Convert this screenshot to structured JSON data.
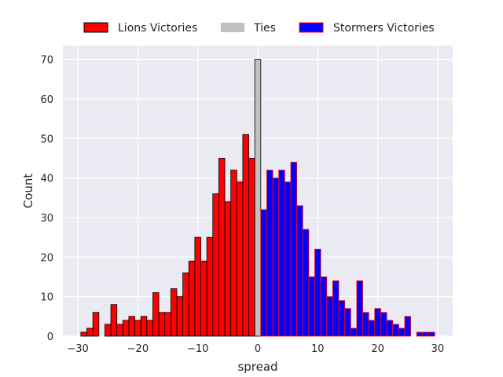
{
  "chart_data": {
    "type": "bar",
    "title": "",
    "xlabel": "spread",
    "ylabel": "Count",
    "xlim": [
      -32.5,
      32.5
    ],
    "ylim": [
      0,
      73.5
    ],
    "xticks": [
      -30,
      -20,
      -10,
      0,
      10,
      20,
      30
    ],
    "yticks": [
      0,
      10,
      20,
      30,
      40,
      50,
      60,
      70
    ],
    "grid": true,
    "legend_position": "top-center",
    "bin_width": 1,
    "series": [
      {
        "name": "Lions Victories",
        "color": "#ff0000",
        "edge_color": "#000000",
        "x": [
          -29,
          -28,
          -27,
          -26,
          -25,
          -24,
          -23,
          -22,
          -21,
          -20,
          -19,
          -18,
          -17,
          -16,
          -15,
          -14,
          -13,
          -12,
          -11,
          -10,
          -9,
          -8,
          -7,
          -6,
          -5,
          -4,
          -3,
          -2,
          -1
        ],
        "values": [
          1,
          2,
          6,
          0,
          3,
          8,
          3,
          4,
          5,
          4,
          5,
          4,
          11,
          6,
          6,
          12,
          10,
          16,
          19,
          25,
          19,
          25,
          36,
          45,
          34,
          42,
          39,
          51,
          45
        ]
      },
      {
        "name": "Ties",
        "color": "#c0c0c0",
        "edge_color": "#000000",
        "x": [
          0
        ],
        "values": [
          70
        ]
      },
      {
        "name": "Stormers Victories",
        "color": "#0000ff",
        "edge_color": "#ff0000",
        "x": [
          1,
          2,
          3,
          4,
          5,
          6,
          7,
          8,
          9,
          10,
          11,
          12,
          13,
          14,
          15,
          16,
          17,
          18,
          19,
          20,
          21,
          22,
          23,
          24,
          25,
          26,
          27,
          28,
          29
        ],
        "values": [
          32,
          42,
          40,
          42,
          39,
          44,
          33,
          27,
          15,
          22,
          15,
          10,
          14,
          9,
          7,
          2,
          14,
          6,
          4,
          7,
          6,
          4,
          3,
          2,
          5,
          0,
          1,
          1,
          1
        ]
      }
    ]
  }
}
